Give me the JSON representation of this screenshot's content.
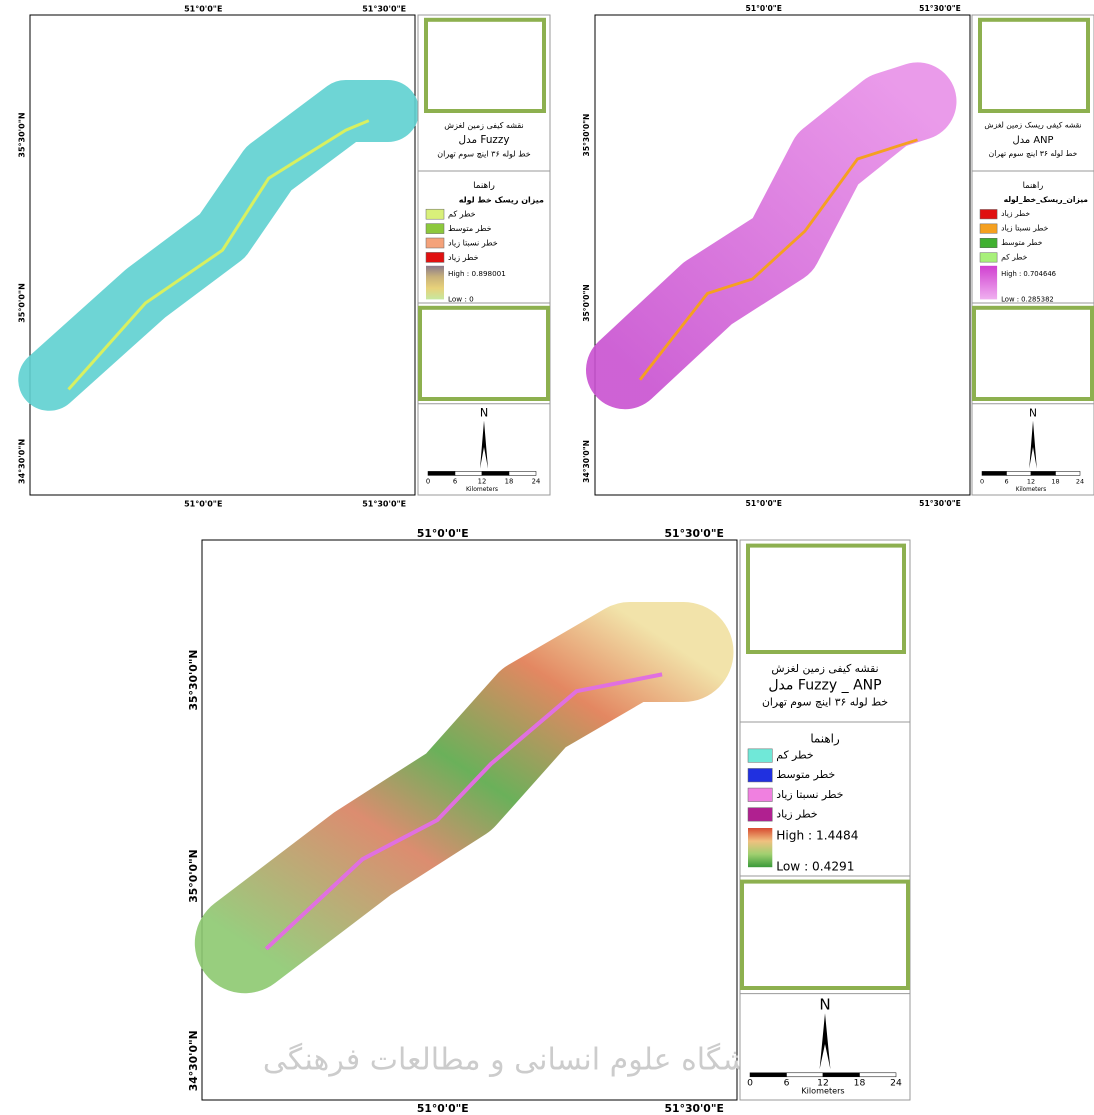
{
  "maps": [
    {
      "top_labels": [
        "51°0'0\"E",
        "51°30'0\"E"
      ],
      "bottom_labels": [
        "51°0'0\"E",
        "51°30'0\"E"
      ],
      "left_labels": [
        "35°30'0\"N",
        "35°0'0\"N",
        "34°30'0\"N"
      ],
      "legend": {
        "title_lines": [
          "نقشه کیفی زمین لغزش",
          "مدل Fuzzy",
          "خط لوله ۳۶ اینچ سوم تهران"
        ],
        "heading": "راهنما",
        "subheading": "میزان ریسک خط لوله",
        "items": [
          {
            "label": "خطر کم",
            "color": "#d9f07a"
          },
          {
            "label": "خطر متوسط",
            "color": "#8cc83c"
          },
          {
            "label": "خطر نسبتا زیاد",
            "color": "#f4a27a"
          },
          {
            "label": "خطر زیاد",
            "color": "#e01010"
          }
        ],
        "ramp_colors": [
          "#8a7a8c",
          "#c9b27a",
          "#e8d27a",
          "#c6e8a0"
        ],
        "high": "High : 0.898001",
        "low": "Low : 0"
      },
      "north": "N",
      "scale": {
        "ticks": [
          "0",
          "6",
          "12",
          "18",
          "24"
        ],
        "unit": "Kilometers"
      }
    },
    {
      "top_labels": [
        "51°0'0\"E",
        "51°30'0\"E"
      ],
      "bottom_labels": [
        "51°0'0\"E",
        "51°30'0\"E"
      ],
      "left_labels": [
        "35°30'0\"N",
        "35°0'0\"N",
        "34°30'0\"N"
      ],
      "legend": {
        "title_lines": [
          "نقشه کیفی ریسک زمین لغزش",
          "مدل ANP",
          "خط لوله ۳۶ اینچ سوم تهران"
        ],
        "heading": "راهنما",
        "subheading": "میزان_ریسک_خط_لوله",
        "items": [
          {
            "label": "خطر زیاد",
            "color": "#e01010"
          },
          {
            "label": "خطر نسبتا زیاد",
            "color": "#f5a020"
          },
          {
            "label": "خطر متوسط",
            "color": "#40b030"
          },
          {
            "label": "خطر کم",
            "color": "#a8f07a"
          }
        ],
        "ramp_colors": [
          "#d040d0",
          "#f0b0f0"
        ],
        "high": "High : 0.704646",
        "low": "Low : 0.285382"
      },
      "north": "N",
      "scale": {
        "ticks": [
          "0",
          "6",
          "12",
          "18",
          "24"
        ],
        "unit": "Kilometers"
      }
    },
    {
      "top_labels": [
        "51°0'0\"E",
        "51°30'0\"E"
      ],
      "bottom_labels": [
        "51°0'0\"E",
        "51°30'0\"E"
      ],
      "left_labels": [
        "35°30'0\"N",
        "35°0'0\"N",
        "34°30'0\"N"
      ],
      "legend": {
        "title_lines": [
          "نقشه کیفی زمین لغزش",
          "مدل Fuzzy _ ANP",
          "خط لوله ۳۶ اینچ سوم تهران"
        ],
        "heading": "راهنما",
        "items": [
          {
            "label": "خطر کم",
            "color": "#70e8d8"
          },
          {
            "label": "خطر متوسط",
            "color": "#2030e0"
          },
          {
            "label": "خطر نسبتا زیاد",
            "color": "#f080e0"
          },
          {
            "label": "خطر زیاد",
            "color": "#b02090"
          }
        ],
        "ramp_colors": [
          "#d84a30",
          "#f0c080",
          "#a0d070",
          "#3a9a3a"
        ],
        "high": "High : 1.4484",
        "low": "Low : 0.4291"
      },
      "north": "N",
      "scale": {
        "ticks": [
          "0",
          "6",
          "12",
          "18",
          "24"
        ],
        "unit": "Kilometers"
      },
      "watermark": "پژوهشگاه علوم انسانی و مطالعات فرهنگی"
    }
  ]
}
